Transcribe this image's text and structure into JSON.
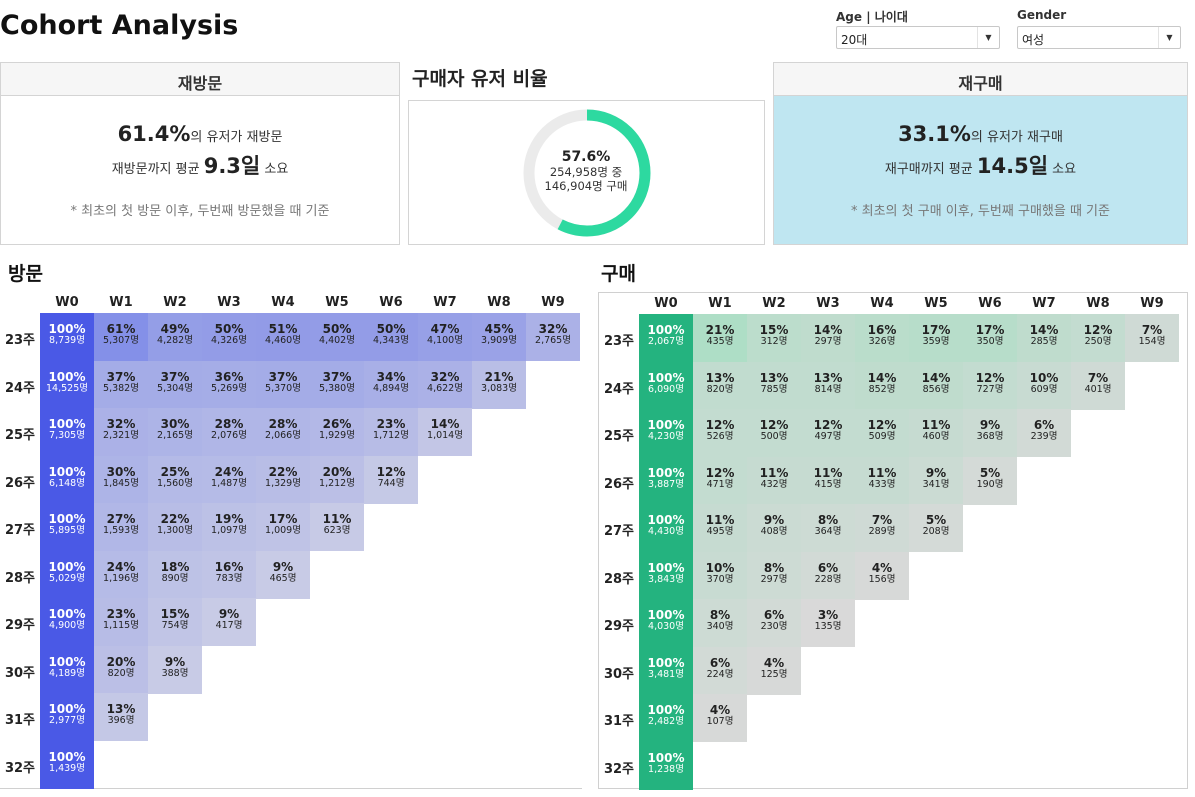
{
  "page": {
    "title": "Cohort Analysis"
  },
  "filters": {
    "age": {
      "label": "Age | 나이대",
      "value": "20대"
    },
    "gender": {
      "label": "Gender",
      "value": "여성"
    }
  },
  "revisit_kpi": {
    "title": "재방문",
    "pct": "61.4%",
    "line1_suffix": "의 유저가 재방문",
    "line2_prefix": "재방문까지 평균 ",
    "days": "9.3일",
    "line2_suffix": " 소요",
    "note": "* 최초의 첫 방문 이후, 두번째 방문했을 때 기준"
  },
  "buyer_ratio": {
    "title": "구매자 유저 비율",
    "pct": "57.6%",
    "fraction": 0.576,
    "total": "254,958명 중",
    "buyers": "146,904명 구매",
    "colors": {
      "fill": "#2dd9a0",
      "track": "#ebebeb"
    }
  },
  "repurchase_kpi": {
    "title": "재구매",
    "pct": "33.1%",
    "line1_suffix": "의 유저가 재구매",
    "line2_prefix": "재구매까지 평균 ",
    "days": "14.5일",
    "line2_suffix": " 소요",
    "note": "* 최초의 첫 구매 이후, 두번째 구매했을 때 기준"
  },
  "visit_cohort": {
    "title": "방문",
    "columns": [
      "W0",
      "W1",
      "W2",
      "W3",
      "W4",
      "W5",
      "W6",
      "W7",
      "W8",
      "W9"
    ],
    "rows": [
      {
        "label": "23주",
        "cells": [
          [
            "100%",
            "8,739명"
          ],
          [
            "61%",
            "5,307명"
          ],
          [
            "49%",
            "4,282명"
          ],
          [
            "50%",
            "4,326명"
          ],
          [
            "51%",
            "4,460명"
          ],
          [
            "50%",
            "4,402명"
          ],
          [
            "50%",
            "4,343명"
          ],
          [
            "47%",
            "4,100명"
          ],
          [
            "45%",
            "3,909명"
          ],
          [
            "32%",
            "2,765명"
          ]
        ]
      },
      {
        "label": "24주",
        "cells": [
          [
            "100%",
            "14,525명"
          ],
          [
            "37%",
            "5,382명"
          ],
          [
            "37%",
            "5,304명"
          ],
          [
            "36%",
            "5,269명"
          ],
          [
            "37%",
            "5,370명"
          ],
          [
            "37%",
            "5,380명"
          ],
          [
            "34%",
            "4,894명"
          ],
          [
            "32%",
            "4,622명"
          ],
          [
            "21%",
            "3,083명"
          ]
        ]
      },
      {
        "label": "25주",
        "cells": [
          [
            "100%",
            "7,305명"
          ],
          [
            "32%",
            "2,321명"
          ],
          [
            "30%",
            "2,165명"
          ],
          [
            "28%",
            "2,076명"
          ],
          [
            "28%",
            "2,066명"
          ],
          [
            "26%",
            "1,929명"
          ],
          [
            "23%",
            "1,712명"
          ],
          [
            "14%",
            "1,014명"
          ]
        ]
      },
      {
        "label": "26주",
        "cells": [
          [
            "100%",
            "6,148명"
          ],
          [
            "30%",
            "1,845명"
          ],
          [
            "25%",
            "1,560명"
          ],
          [
            "24%",
            "1,487명"
          ],
          [
            "22%",
            "1,329명"
          ],
          [
            "20%",
            "1,212명"
          ],
          [
            "12%",
            "744명"
          ]
        ]
      },
      {
        "label": "27주",
        "cells": [
          [
            "100%",
            "5,895명"
          ],
          [
            "27%",
            "1,593명"
          ],
          [
            "22%",
            "1,300명"
          ],
          [
            "19%",
            "1,097명"
          ],
          [
            "17%",
            "1,009명"
          ],
          [
            "11%",
            "623명"
          ]
        ]
      },
      {
        "label": "28주",
        "cells": [
          [
            "100%",
            "5,029명"
          ],
          [
            "24%",
            "1,196명"
          ],
          [
            "18%",
            "890명"
          ],
          [
            "16%",
            "783명"
          ],
          [
            "9%",
            "465명"
          ]
        ]
      },
      {
        "label": "29주",
        "cells": [
          [
            "100%",
            "4,900명"
          ],
          [
            "23%",
            "1,115명"
          ],
          [
            "15%",
            "754명"
          ],
          [
            "9%",
            "417명"
          ]
        ]
      },
      {
        "label": "30주",
        "cells": [
          [
            "100%",
            "4,189명"
          ],
          [
            "20%",
            "820명"
          ],
          [
            "9%",
            "388명"
          ]
        ]
      },
      {
        "label": "31주",
        "cells": [
          [
            "100%",
            "2,977명"
          ],
          [
            "13%",
            "396명"
          ]
        ]
      },
      {
        "label": "32주",
        "cells": [
          [
            "100%",
            "1,439명"
          ]
        ]
      }
    ],
    "colors": {
      "full": "#4a59e6",
      "high": "#c8cbe6",
      "low": "#7f8be8"
    }
  },
  "purchase_cohort": {
    "title": "구매",
    "columns": [
      "W0",
      "W1",
      "W2",
      "W3",
      "W4",
      "W5",
      "W6",
      "W7",
      "W8",
      "W9"
    ],
    "rows": [
      {
        "label": "23주",
        "cells": [
          [
            "100%",
            "2,067명"
          ],
          [
            "21%",
            "435명"
          ],
          [
            "15%",
            "312명"
          ],
          [
            "14%",
            "297명"
          ],
          [
            "16%",
            "326명"
          ],
          [
            "17%",
            "359명"
          ],
          [
            "17%",
            "350명"
          ],
          [
            "14%",
            "285명"
          ],
          [
            "12%",
            "250명"
          ],
          [
            "7%",
            "154명"
          ]
        ]
      },
      {
        "label": "24주",
        "cells": [
          [
            "100%",
            "6,090명"
          ],
          [
            "13%",
            "820명"
          ],
          [
            "13%",
            "785명"
          ],
          [
            "13%",
            "814명"
          ],
          [
            "14%",
            "852명"
          ],
          [
            "14%",
            "856명"
          ],
          [
            "12%",
            "727명"
          ],
          [
            "10%",
            "609명"
          ],
          [
            "7%",
            "401명"
          ]
        ]
      },
      {
        "label": "25주",
        "cells": [
          [
            "100%",
            "4,230명"
          ],
          [
            "12%",
            "526명"
          ],
          [
            "12%",
            "500명"
          ],
          [
            "12%",
            "497명"
          ],
          [
            "12%",
            "509명"
          ],
          [
            "11%",
            "460명"
          ],
          [
            "9%",
            "368명"
          ],
          [
            "6%",
            "239명"
          ]
        ]
      },
      {
        "label": "26주",
        "cells": [
          [
            "100%",
            "3,887명"
          ],
          [
            "12%",
            "471명"
          ],
          [
            "11%",
            "432명"
          ],
          [
            "11%",
            "415명"
          ],
          [
            "11%",
            "433명"
          ],
          [
            "9%",
            "341명"
          ],
          [
            "5%",
            "190명"
          ]
        ]
      },
      {
        "label": "27주",
        "cells": [
          [
            "100%",
            "4,430명"
          ],
          [
            "11%",
            "495명"
          ],
          [
            "9%",
            "408명"
          ],
          [
            "8%",
            "364명"
          ],
          [
            "7%",
            "289명"
          ],
          [
            "5%",
            "208명"
          ]
        ]
      },
      {
        "label": "28주",
        "cells": [
          [
            "100%",
            "3,843명"
          ],
          [
            "10%",
            "370명"
          ],
          [
            "8%",
            "297명"
          ],
          [
            "6%",
            "228명"
          ],
          [
            "4%",
            "156명"
          ]
        ]
      },
      {
        "label": "29주",
        "cells": [
          [
            "100%",
            "4,030명"
          ],
          [
            "8%",
            "340명"
          ],
          [
            "6%",
            "230명"
          ],
          [
            "3%",
            "135명"
          ]
        ]
      },
      {
        "label": "30주",
        "cells": [
          [
            "100%",
            "3,481명"
          ],
          [
            "6%",
            "224명"
          ],
          [
            "4%",
            "125명"
          ]
        ]
      },
      {
        "label": "31주",
        "cells": [
          [
            "100%",
            "2,482명"
          ],
          [
            "4%",
            "107명"
          ]
        ]
      },
      {
        "label": "32주",
        "cells": [
          [
            "100%",
            "1,238명"
          ]
        ]
      }
    ],
    "colors": {
      "full": "#24b37f",
      "high": "#d9d9d9",
      "low": "#a9dfc4"
    }
  }
}
